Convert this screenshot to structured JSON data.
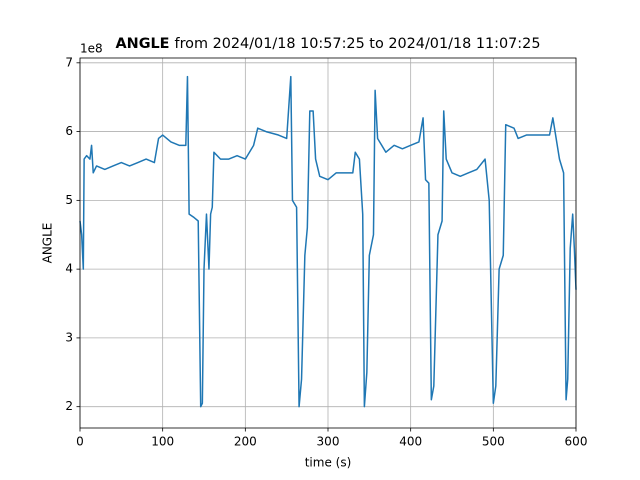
{
  "chart_data": {
    "type": "line",
    "title_name": "ANGLE",
    "title": "from 2024/01/18 10:57:25 to 2024/01/18 11:07:25",
    "x_label": "time (s)",
    "y_label": "ANGLE",
    "y_offset_text": "1e8",
    "x": [
      0,
      2,
      4,
      5,
      8,
      12,
      14,
      16,
      20,
      30,
      40,
      50,
      60,
      70,
      80,
      90,
      95,
      100,
      110,
      120,
      128,
      130,
      132,
      138,
      143,
      146,
      148,
      150,
      153,
      156,
      158,
      160,
      162,
      170,
      180,
      190,
      200,
      210,
      215,
      225,
      240,
      250,
      255,
      257,
      262,
      265,
      268,
      272,
      275,
      278,
      282,
      285,
      290,
      300,
      310,
      320,
      330,
      333,
      338,
      342,
      344,
      347,
      350,
      355,
      357,
      360,
      370,
      380,
      390,
      400,
      410,
      415,
      418,
      422,
      425,
      428,
      433,
      438,
      440,
      443,
      450,
      460,
      470,
      480,
      490,
      495,
      500,
      503,
      507,
      512,
      515,
      525,
      530,
      540,
      550,
      560,
      568,
      572,
      576,
      580,
      585,
      588,
      590,
      593,
      596,
      598,
      600
    ],
    "series": [
      {
        "name": "ANGLE",
        "color": "#1f77b4",
        "values": [
          4.7,
          4.5,
          4.0,
          5.6,
          5.65,
          5.6,
          5.8,
          5.4,
          5.5,
          5.45,
          5.5,
          5.55,
          5.5,
          5.55,
          5.6,
          5.55,
          5.9,
          5.95,
          5.85,
          5.8,
          5.8,
          6.8,
          4.8,
          4.75,
          4.7,
          2.0,
          2.05,
          4.0,
          4.8,
          4.0,
          4.8,
          4.9,
          5.7,
          5.6,
          5.6,
          5.65,
          5.6,
          5.8,
          6.05,
          6.0,
          5.95,
          5.9,
          6.8,
          5.0,
          4.9,
          2.0,
          2.4,
          4.2,
          4.6,
          6.3,
          6.3,
          5.6,
          5.35,
          5.3,
          5.4,
          5.4,
          5.4,
          5.7,
          5.6,
          4.8,
          2.0,
          2.5,
          4.2,
          4.5,
          6.6,
          5.9,
          5.7,
          5.8,
          5.75,
          5.8,
          5.85,
          6.2,
          5.3,
          5.25,
          2.1,
          2.3,
          4.5,
          4.7,
          6.3,
          5.6,
          5.4,
          5.35,
          5.4,
          5.45,
          5.6,
          5.0,
          2.05,
          2.3,
          4.0,
          4.2,
          6.1,
          6.05,
          5.9,
          5.95,
          5.95,
          5.95,
          5.95,
          6.2,
          5.9,
          5.6,
          5.4,
          2.1,
          2.4,
          4.3,
          4.8,
          4.3,
          3.7
        ]
      }
    ],
    "xlim": [
      0,
      600
    ],
    "xticks": [
      0,
      100,
      200,
      300,
      400,
      500,
      600
    ],
    "ylim": [
      1.69,
      7.07
    ],
    "yticks": [
      2,
      3,
      4,
      5,
      6,
      7
    ],
    "grid": true
  }
}
